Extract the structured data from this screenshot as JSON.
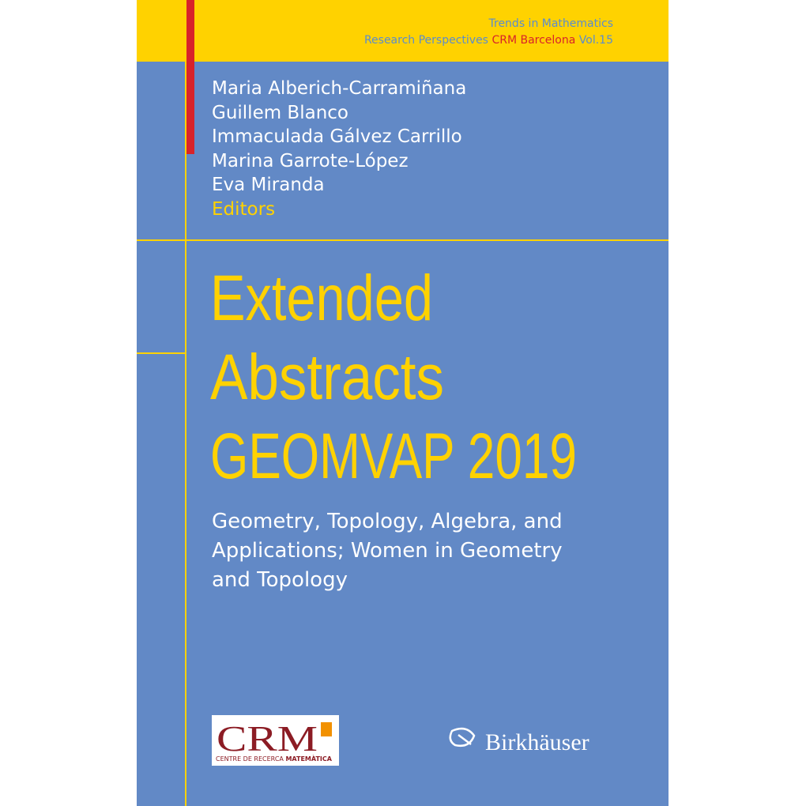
{
  "series": {
    "name": "Trends in Mathematics",
    "subseries": "Research Perspectives",
    "highlight": "CRM Barcelona",
    "volume": "Vol.15"
  },
  "editors": [
    "Maria Alberich-Carramiñana",
    "Guillem Blanco",
    "Immaculada Gálvez Carrillo",
    "Marina Garrote-López",
    "Eva Miranda"
  ],
  "editors_label": "Editors",
  "title": [
    "Extended",
    "Abstracts",
    "GEOMVAP 2019"
  ],
  "subtitle": [
    "Geometry, Topology, Algebra, and",
    "Applications; Women in Geometry",
    "and Topology"
  ],
  "crm_logo": {
    "mark": "CRM",
    "name": "CENTRE DE RECERCA",
    "name_bold": "MATEMÀTICA"
  },
  "publisher": "Birkhäuser"
}
